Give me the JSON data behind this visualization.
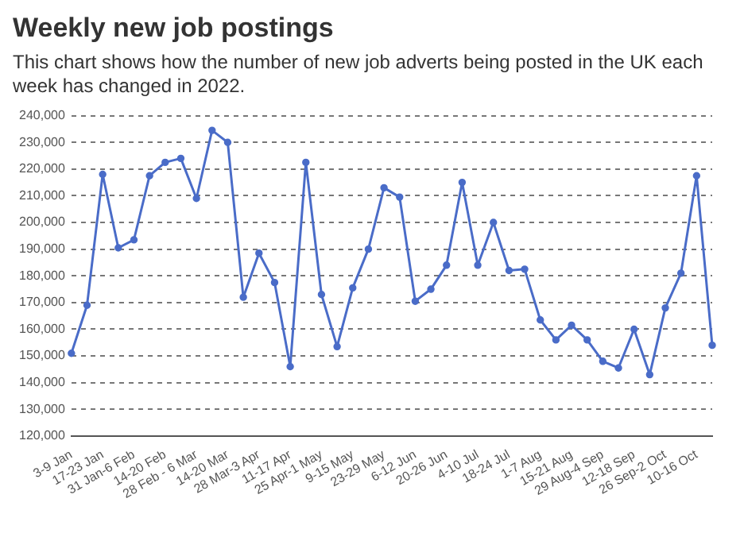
{
  "chart_data": {
    "type": "line",
    "title": "Weekly new job postings",
    "subtitle": "This chart shows how the number of new job adverts being posted in the UK each week has changed in 2022.",
    "categories": [
      "3-9 Jan",
      null,
      "17-23 Jan",
      null,
      "31 Jan-6 Feb",
      null,
      "14-20 Feb",
      null,
      "28 Feb - 6 Mar",
      null,
      "14-20 Mar",
      null,
      "28 Mar-3 Apr",
      null,
      "11-17 Apr",
      null,
      "25 Apr-1 May",
      null,
      "9-15 May",
      null,
      "23-29 May",
      null,
      "6-12 Jun",
      null,
      "20-26 Jun",
      null,
      "4-10 Jul",
      null,
      "18-24 Jul",
      null,
      "1-7 Aug",
      null,
      "15-21 Aug",
      null,
      "29 Aug-4 Sep",
      null,
      "12-18 Sep",
      null,
      "26 Sep-2 Oct",
      null,
      "10-16 Oct",
      null
    ],
    "series": [
      {
        "color": "#4a6cc8",
        "values": [
          151000,
          169000,
          218000,
          190500,
          193500,
          217500,
          222500,
          224000,
          209000,
          234500,
          230000,
          172000,
          188500,
          177500,
          146000,
          222500,
          173000,
          153500,
          175500,
          190000,
          213000,
          209500,
          170500,
          175000,
          184000,
          215000,
          184000,
          200000,
          182000,
          182500,
          163500,
          156000,
          161500,
          156000,
          148000,
          145500,
          160000,
          143000,
          168000,
          181000,
          217500,
          154000
        ]
      }
    ],
    "ylim": [
      120000,
      240000
    ],
    "yticks": [
      {
        "value": 120000,
        "label": "120,000"
      },
      {
        "value": 130000,
        "label": "130,000"
      },
      {
        "value": 140000,
        "label": "140,000"
      },
      {
        "value": 150000,
        "label": "150,000"
      },
      {
        "value": 160000,
        "label": "160,000"
      },
      {
        "value": 170000,
        "label": "170,000"
      },
      {
        "value": 180000,
        "label": "180,000"
      },
      {
        "value": 190000,
        "label": "190,000"
      },
      {
        "value": 200000,
        "label": "200,000"
      },
      {
        "value": 210000,
        "label": "210,000"
      },
      {
        "value": 220000,
        "label": "220,000"
      },
      {
        "value": 230000,
        "label": "230,000"
      },
      {
        "value": 240000,
        "label": "240,000"
      }
    ],
    "grid": "y",
    "legend": false,
    "marker": "circle",
    "line_style": "solid"
  }
}
